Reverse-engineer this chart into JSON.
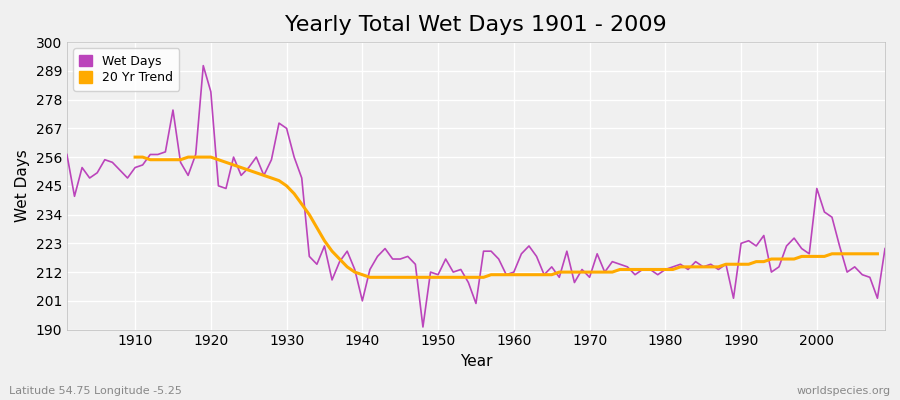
{
  "title": "Yearly Total Wet Days 1901 - 2009",
  "xlabel": "Year",
  "ylabel": "Wet Days",
  "xlim": [
    1901,
    2009
  ],
  "ylim": [
    190,
    300
  ],
  "yticks": [
    190,
    201,
    212,
    223,
    234,
    245,
    256,
    267,
    278,
    289,
    300
  ],
  "xticks": [
    1910,
    1920,
    1930,
    1940,
    1950,
    1960,
    1970,
    1980,
    1990,
    2000
  ],
  "wet_days_color": "#bb44bb",
  "trend_color": "#ffaa00",
  "background_color": "#f0f0f0",
  "plot_bg_color": "#f0f0f0",
  "grid_color": "#ffffff",
  "title_fontsize": 16,
  "axis_label_fontsize": 11,
  "tick_fontsize": 10,
  "legend_labels": [
    "Wet Days",
    "20 Yr Trend"
  ],
  "footer_left": "Latitude 54.75 Longitude -5.25",
  "footer_right": "worldspecies.org",
  "years": [
    1901,
    1902,
    1903,
    1904,
    1905,
    1906,
    1907,
    1908,
    1909,
    1910,
    1911,
    1912,
    1913,
    1914,
    1915,
    1916,
    1917,
    1918,
    1919,
    1920,
    1921,
    1922,
    1923,
    1924,
    1925,
    1926,
    1927,
    1928,
    1929,
    1930,
    1931,
    1932,
    1933,
    1934,
    1935,
    1936,
    1937,
    1938,
    1939,
    1940,
    1941,
    1942,
    1943,
    1944,
    1945,
    1946,
    1947,
    1948,
    1949,
    1950,
    1951,
    1952,
    1953,
    1954,
    1955,
    1956,
    1957,
    1958,
    1959,
    1960,
    1961,
    1962,
    1963,
    1964,
    1965,
    1966,
    1967,
    1968,
    1969,
    1970,
    1971,
    1972,
    1973,
    1974,
    1975,
    1976,
    1977,
    1978,
    1979,
    1980,
    1981,
    1982,
    1983,
    1984,
    1985,
    1986,
    1987,
    1988,
    1989,
    1990,
    1991,
    1992,
    1993,
    1994,
    1995,
    1996,
    1997,
    1998,
    1999,
    2000,
    2001,
    2002,
    2003,
    2004,
    2005,
    2006,
    2007,
    2008,
    2009
  ],
  "wet_days": [
    257,
    241,
    252,
    248,
    250,
    255,
    254,
    251,
    248,
    252,
    253,
    257,
    257,
    258,
    274,
    254,
    249,
    257,
    291,
    281,
    245,
    244,
    256,
    249,
    252,
    256,
    249,
    255,
    269,
    267,
    256,
    248,
    218,
    215,
    222,
    209,
    216,
    220,
    213,
    201,
    213,
    218,
    221,
    217,
    217,
    218,
    215,
    191,
    212,
    211,
    217,
    212,
    213,
    208,
    200,
    220,
    220,
    217,
    211,
    212,
    219,
    222,
    218,
    211,
    214,
    210,
    220,
    208,
    213,
    210,
    219,
    212,
    216,
    215,
    214,
    211,
    213,
    213,
    211,
    213,
    214,
    215,
    213,
    216,
    214,
    215,
    213,
    215,
    202,
    223,
    224,
    222,
    226,
    212,
    214,
    222,
    225,
    221,
    219,
    244,
    235,
    233,
    222,
    212,
    214,
    211,
    210,
    202,
    221
  ],
  "trend": [
    null,
    null,
    null,
    null,
    null,
    null,
    null,
    null,
    null,
    256,
    256,
    255,
    255,
    255,
    255,
    255,
    256,
    256,
    256,
    256,
    255,
    254,
    253,
    252,
    251,
    250,
    249,
    248,
    247,
    245,
    242,
    238,
    234,
    229,
    224,
    220,
    217,
    214,
    212,
    211,
    210,
    210,
    210,
    210,
    210,
    210,
    210,
    210,
    210,
    210,
    210,
    210,
    210,
    210,
    210,
    210,
    211,
    211,
    211,
    211,
    211,
    211,
    211,
    211,
    211,
    212,
    212,
    212,
    212,
    212,
    212,
    212,
    212,
    213,
    213,
    213,
    213,
    213,
    213,
    213,
    213,
    214,
    214,
    214,
    214,
    214,
    214,
    215,
    215,
    215,
    215,
    216,
    216,
    217,
    217,
    217,
    217,
    218,
    218,
    218,
    218,
    219,
    219,
    219,
    219,
    219,
    219,
    219,
    null
  ]
}
